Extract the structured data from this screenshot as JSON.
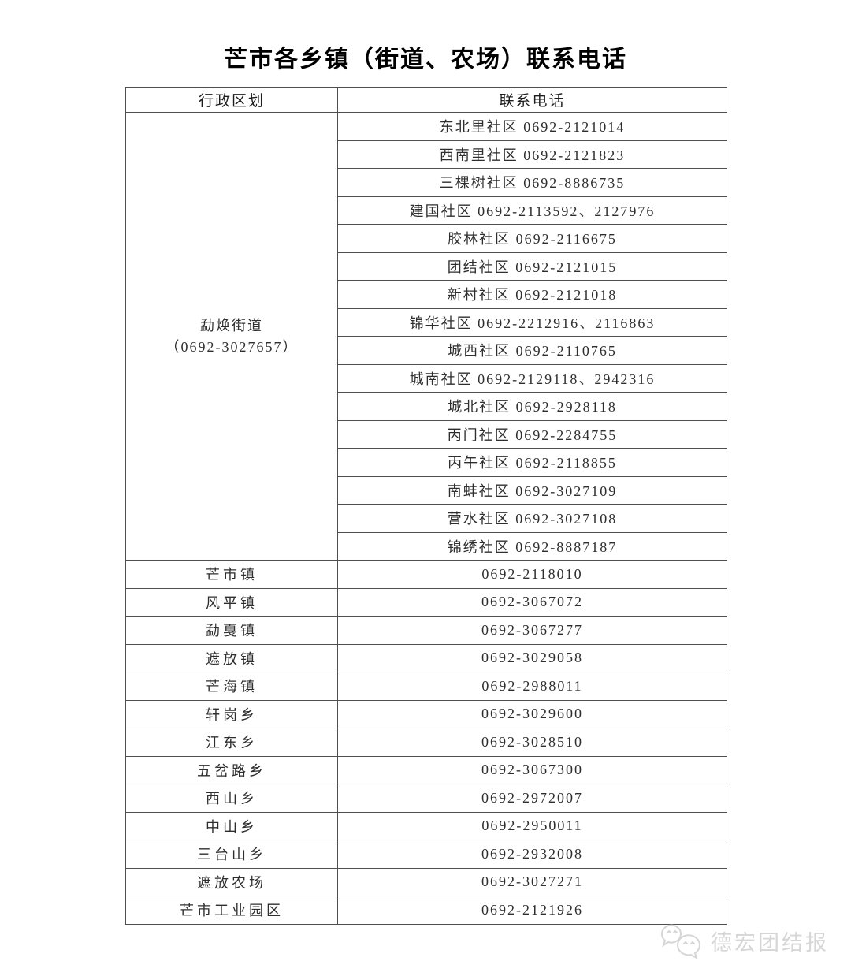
{
  "page": {
    "title": "芒市各乡镇（街道、农场）联系电话"
  },
  "table": {
    "headers": [
      "行政区划",
      "联系电话"
    ],
    "street_group": {
      "name_line1": "勐焕街道",
      "name_line2": "（0692-3027657）",
      "communities": [
        "东北里社区 0692-2121014",
        "西南里社区 0692-2121823",
        "三棵树社区 0692-8886735",
        "建国社区 0692-2113592、2127976",
        "胶林社区 0692-2116675",
        "团结社区 0692-2121015",
        "新村社区 0692-2121018",
        "锦华社区 0692-2212916、2116863",
        "城西社区 0692-2110765",
        "城南社区 0692-2129118、2942316",
        "城北社区 0692-2928118",
        "丙门社区 0692-2284755",
        "丙午社区 0692-2118855",
        "南蚌社区 0692-3027109",
        "营水社区 0692-3027108",
        "锦绣社区 0692-8887187"
      ]
    },
    "rows": [
      {
        "name": "芒市镇",
        "phone": "0692-2118010"
      },
      {
        "name": "风平镇",
        "phone": "0692-3067072"
      },
      {
        "name": "勐戛镇",
        "phone": "0692-3067277"
      },
      {
        "name": "遮放镇",
        "phone": "0692-3029058"
      },
      {
        "name": "芒海镇",
        "phone": "0692-2988011"
      },
      {
        "name": "轩岗乡",
        "phone": "0692-3029600"
      },
      {
        "name": "江东乡",
        "phone": "0692-3028510"
      },
      {
        "name": "五岔路乡",
        "phone": "0692-3067300"
      },
      {
        "name": "西山乡",
        "phone": "0692-2972007"
      },
      {
        "name": "中山乡",
        "phone": "0692-2950011"
      },
      {
        "name": "三台山乡",
        "phone": "0692-2932008"
      },
      {
        "name": "遮放农场",
        "phone": "0692-3027271"
      },
      {
        "name": "芒市工业园区",
        "phone": "0692-2121926"
      }
    ]
  },
  "watermark": {
    "label": "德宏团结报",
    "icon": "wechat-icon",
    "color": "#d6d6d6"
  }
}
